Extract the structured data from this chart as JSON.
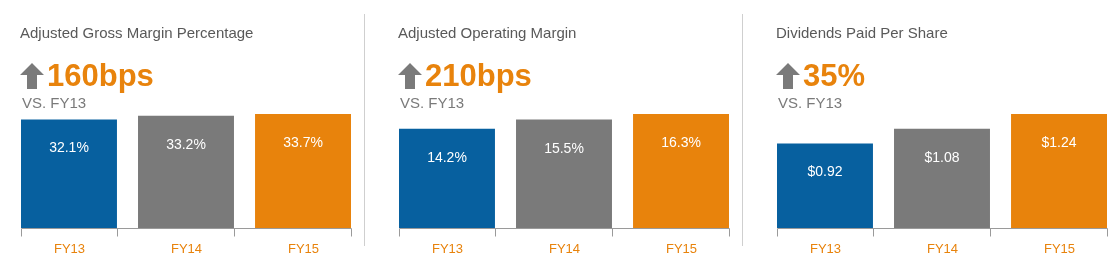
{
  "chart_data": [
    {
      "type": "bar",
      "title": "Adjusted Gross Margin Percentage",
      "categories": [
        "FY13",
        "FY14",
        "FY15"
      ],
      "values": [
        32.1,
        33.2,
        33.7
      ],
      "colors": [
        "#07609f",
        "#7a7a7a",
        "#e8830c"
      ],
      "value_labels": [
        "32.1%",
        "33.2%",
        "33.7%"
      ],
      "annotations": [
        "160bps",
        "VS. FY13"
      ]
    },
    {
      "type": "bar",
      "title": "Adjusted Operating Margin",
      "categories": [
        "FY13",
        "FY14",
        "FY15"
      ],
      "values": [
        14.2,
        15.5,
        16.3
      ],
      "colors": [
        "#07609f",
        "#7a7a7a",
        "#e8830c"
      ],
      "value_labels": [
        "14.2%",
        "15.5%",
        "16.3%"
      ],
      "annotations": [
        "210bps",
        "VS. FY13"
      ]
    },
    {
      "type": "bar",
      "title": "Dividends Paid Per Share",
      "categories": [
        "FY13",
        "FY14",
        "FY15"
      ],
      "values": [
        0.92,
        1.08,
        1.24
      ],
      "colors": [
        "#07609f",
        "#7a7a7a",
        "#e8830c"
      ],
      "value_labels": [
        "$0.92",
        "$1.08",
        "$1.24"
      ],
      "annotations": [
        "35%",
        "VS. FY13"
      ]
    }
  ]
}
